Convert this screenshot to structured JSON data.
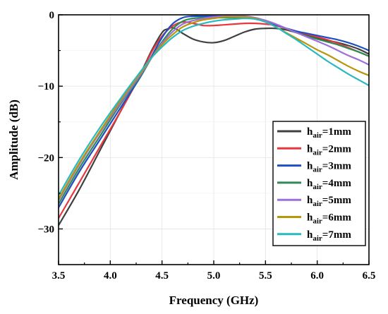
{
  "chart_data": {
    "type": "line",
    "title": "",
    "xlabel": "Frequency (GHz)",
    "ylabel": "Amplitude (dB)",
    "xlim": [
      3.5,
      6.5
    ],
    "ylim": [
      -35,
      0
    ],
    "xticks": [
      3.5,
      4.0,
      4.5,
      5.0,
      5.5,
      6.0,
      6.5
    ],
    "xtick_labels": [
      "3.5",
      "4.0",
      "4.5",
      "5.0",
      "5.5",
      "6.0",
      "6.5"
    ],
    "yticks": [
      0,
      -10,
      -20,
      -30
    ],
    "ytick_labels": [
      "0",
      "−10",
      "−20",
      "−30"
    ],
    "grid": true,
    "legend_position": "bottom-right",
    "series": [
      {
        "name": "h_air=1mm",
        "label_main": "h",
        "label_sub": "air",
        "label_rest": "=1mm",
        "color": "#404040",
        "x": [
          3.5,
          3.7,
          3.9,
          4.1,
          4.3,
          4.4,
          4.5,
          4.55,
          4.6,
          4.65,
          4.7,
          4.8,
          4.9,
          5.0,
          5.1,
          5.2,
          5.3,
          5.4,
          5.5,
          5.6,
          5.7,
          5.8,
          5.9,
          6.0,
          6.1,
          6.2,
          6.3,
          6.4,
          6.5
        ],
        "y": [
          -29.5,
          -24.5,
          -19.0,
          -13.5,
          -8.0,
          -5.0,
          -2.5,
          -2.0,
          -1.8,
          -2.1,
          -2.6,
          -3.4,
          -3.8,
          -3.9,
          -3.6,
          -3.0,
          -2.4,
          -2.0,
          -1.9,
          -1.9,
          -2.1,
          -2.5,
          -2.9,
          -3.3,
          -3.6,
          -3.9,
          -4.3,
          -4.8,
          -5.5
        ]
      },
      {
        "name": "h_air=2mm",
        "label_main": "h",
        "label_sub": "air",
        "label_rest": "=2mm",
        "color": "#e8383d",
        "x": [
          3.5,
          3.7,
          3.9,
          4.1,
          4.3,
          4.4,
          4.5,
          4.6,
          4.7,
          4.8,
          4.9,
          5.0,
          5.1,
          5.2,
          5.3,
          5.4,
          5.5,
          5.6,
          5.7,
          5.8,
          5.9,
          6.0,
          6.1,
          6.2,
          6.3,
          6.4,
          6.5
        ],
        "y": [
          -28.5,
          -23.5,
          -18.5,
          -13.5,
          -8.2,
          -5.2,
          -3.0,
          -1.6,
          -1.0,
          -1.2,
          -1.5,
          -1.5,
          -1.4,
          -1.3,
          -1.2,
          -1.2,
          -1.3,
          -1.5,
          -1.9,
          -2.3,
          -2.7,
          -3.1,
          -3.5,
          -4.0,
          -4.6,
          -5.2,
          -5.8
        ]
      },
      {
        "name": "h_air=3mm",
        "label_main": "h",
        "label_sub": "air",
        "label_rest": "=3mm",
        "color": "#1f4fc0",
        "x": [
          3.5,
          3.7,
          3.9,
          4.1,
          4.3,
          4.4,
          4.5,
          4.6,
          4.7,
          4.8,
          4.9,
          5.0,
          5.1,
          5.2,
          5.3,
          5.4,
          5.5,
          5.6,
          5.7,
          5.8,
          5.9,
          6.0,
          6.1,
          6.2,
          6.3,
          6.4,
          6.5
        ],
        "y": [
          -27.0,
          -22.0,
          -17.5,
          -13.0,
          -8.5,
          -5.8,
          -3.2,
          -1.3,
          -0.4,
          -0.2,
          -0.2,
          -0.2,
          -0.2,
          -0.2,
          -0.3,
          -0.5,
          -0.9,
          -1.4,
          -1.9,
          -2.3,
          -2.6,
          -2.9,
          -3.2,
          -3.5,
          -3.9,
          -4.4,
          -5.0
        ]
      },
      {
        "name": "h_air=4mm",
        "label_main": "h",
        "label_sub": "air",
        "label_rest": "=4mm",
        "color": "#2e8b57",
        "x": [
          3.5,
          3.7,
          3.9,
          4.1,
          4.3,
          4.4,
          4.5,
          4.6,
          4.7,
          4.8,
          4.9,
          5.0,
          5.1,
          5.2,
          5.3,
          5.4,
          5.5,
          5.6,
          5.7,
          5.8,
          5.9,
          6.0,
          6.1,
          6.2,
          6.3,
          6.4,
          6.5
        ],
        "y": [
          -26.5,
          -21.5,
          -17.0,
          -12.5,
          -8.4,
          -6.0,
          -3.8,
          -2.0,
          -0.9,
          -0.5,
          -0.4,
          -0.4,
          -0.4,
          -0.4,
          -0.4,
          -0.5,
          -0.8,
          -1.3,
          -1.9,
          -2.5,
          -3.0,
          -3.4,
          -3.8,
          -4.2,
          -4.7,
          -5.2,
          -5.8
        ]
      },
      {
        "name": "h_air=5mm",
        "label_main": "h",
        "label_sub": "air",
        "label_rest": "=5mm",
        "color": "#9d6fd8",
        "x": [
          3.5,
          3.7,
          3.9,
          4.1,
          4.3,
          4.4,
          4.5,
          4.6,
          4.7,
          4.8,
          4.9,
          5.0,
          5.1,
          5.2,
          5.3,
          5.4,
          5.5,
          5.6,
          5.7,
          5.8,
          5.9,
          6.0,
          6.1,
          6.2,
          6.3,
          6.4,
          6.5
        ],
        "y": [
          -26.0,
          -21.0,
          -16.5,
          -12.3,
          -8.2,
          -6.0,
          -4.0,
          -2.4,
          -1.3,
          -0.8,
          -0.5,
          -0.3,
          -0.2,
          -0.2,
          -0.2,
          -0.4,
          -0.8,
          -1.3,
          -1.9,
          -2.5,
          -3.1,
          -3.7,
          -4.3,
          -5.0,
          -5.7,
          -6.3,
          -7.0
        ]
      },
      {
        "name": "h_air=6mm",
        "label_main": "h",
        "label_sub": "air",
        "label_rest": "=6mm",
        "color": "#b8960a",
        "x": [
          3.5,
          3.7,
          3.9,
          4.1,
          4.3,
          4.4,
          4.5,
          4.6,
          4.7,
          4.8,
          4.9,
          5.0,
          5.1,
          5.2,
          5.3,
          5.4,
          5.5,
          5.6,
          5.7,
          5.8,
          5.9,
          6.0,
          6.1,
          6.2,
          6.3,
          6.4,
          6.5
        ],
        "y": [
          -25.8,
          -20.8,
          -16.3,
          -12.0,
          -8.0,
          -6.0,
          -4.2,
          -2.8,
          -1.7,
          -1.1,
          -0.7,
          -0.5,
          -0.3,
          -0.3,
          -0.3,
          -0.5,
          -1.0,
          -1.7,
          -2.5,
          -3.3,
          -4.1,
          -4.9,
          -5.6,
          -6.4,
          -7.2,
          -7.9,
          -8.5
        ]
      },
      {
        "name": "h_air=7mm",
        "label_main": "h",
        "label_sub": "air",
        "label_rest": "=7mm",
        "color": "#2ab8c0",
        "x": [
          3.5,
          3.7,
          3.9,
          4.1,
          4.3,
          4.4,
          4.5,
          4.6,
          4.7,
          4.8,
          4.9,
          5.0,
          5.1,
          5.2,
          5.3,
          5.4,
          5.5,
          5.6,
          5.7,
          5.8,
          5.9,
          6.0,
          6.1,
          6.2,
          6.3,
          6.4,
          6.5
        ],
        "y": [
          -25.3,
          -20.3,
          -15.8,
          -11.7,
          -7.8,
          -6.0,
          -4.5,
          -3.2,
          -2.2,
          -1.6,
          -1.2,
          -0.9,
          -0.7,
          -0.6,
          -0.5,
          -0.6,
          -1.0,
          -1.7,
          -2.6,
          -3.5,
          -4.5,
          -5.5,
          -6.5,
          -7.4,
          -8.3,
          -9.1,
          -9.9
        ]
      }
    ]
  }
}
